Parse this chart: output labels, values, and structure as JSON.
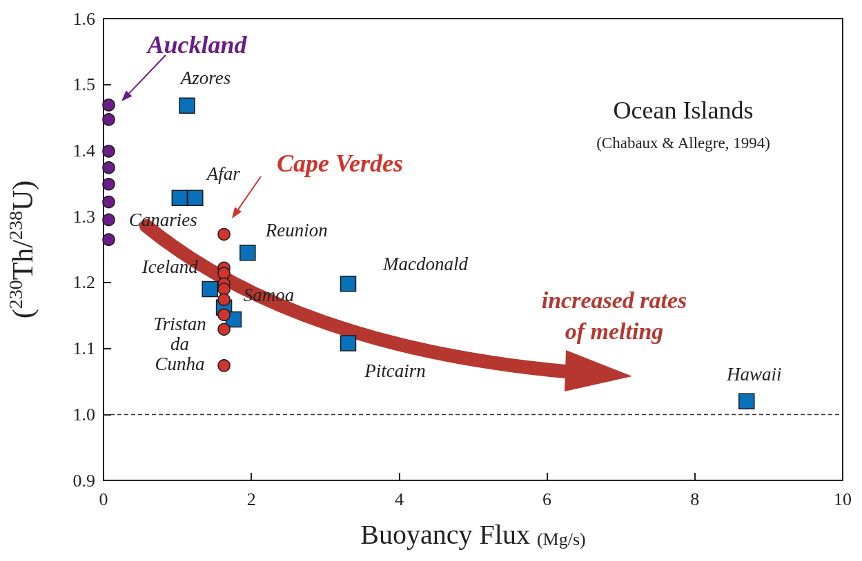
{
  "chart_data": {
    "type": "scatter",
    "xlabel": "Buoyancy Flux (Mg/s)",
    "ylabel": "($^{230}$Th/$^{238}$U)",
    "xlim": [
      0,
      10
    ],
    "xticks": [
      0,
      2,
      4,
      6,
      8,
      10
    ],
    "ylim": [
      0.9,
      1.6
    ],
    "yticks": [
      {
        "value": 0.9,
        "label": "0.9"
      },
      {
        "value": 1,
        "label": "1.0"
      },
      {
        "value": 1.1,
        "label": "1.1"
      },
      {
        "value": 1.2,
        "label": "1.2"
      },
      {
        "value": 1.3,
        "label": "1.3"
      },
      {
        "value": 1.4,
        "label": "1.4"
      },
      {
        "value": 1.5,
        "label": "1.5"
      },
      {
        "value": 1.6,
        "label": "1.6"
      }
    ],
    "grid": false,
    "series": [
      {
        "name": "Auckland",
        "color": "#6b1d87",
        "marker": "circle",
        "x": [
          0.07,
          0.07,
          0.07,
          0.07,
          0.07,
          0.07,
          0.07,
          0.07
        ],
        "values": [
          1.469,
          1.447,
          1.399,
          1.374,
          1.349,
          1.322,
          1.295,
          1.265
        ]
      },
      {
        "name": "Cape Verdes",
        "color": "#d0342c",
        "marker": "circle",
        "x": [
          1.63,
          1.63,
          1.63,
          1.63,
          1.63,
          1.63,
          1.63,
          1.63,
          1.63
        ],
        "values": [
          1.273,
          1.222,
          1.214,
          1.198,
          1.19,
          1.174,
          1.151,
          1.129,
          1.074
        ]
      },
      {
        "color": "#0871b9",
        "marker": "square",
        "x": [
          1.13,
          1.24,
          1.03,
          1.95,
          1.44,
          1.63,
          1.76,
          3.31,
          3.31,
          8.7
        ],
        "values": [
          1.468,
          1.328,
          1.328,
          1.245,
          1.19,
          1.162,
          1.144,
          1.198,
          1.108,
          1.02
        ]
      }
    ],
    "ref_lines": [
      {
        "axis": "y",
        "value": 1,
        "color": "#333333",
        "line_style": "dashed"
      }
    ],
    "annotations": [
      {
        "text": "Azores",
        "x": 1.13,
        "y": 1.468
      },
      {
        "text": "Afar",
        "x": 1.24,
        "y": 1.328
      },
      {
        "text": "Canaries",
        "x": 1.03,
        "y": 1.328
      },
      {
        "text": "Reunion",
        "x": 1.95,
        "y": 1.245
      },
      {
        "text": "Iceland",
        "x": 1.44,
        "y": 1.19
      },
      {
        "text": "Samoa",
        "x": 1.63,
        "y": 1.162
      },
      {
        "text": "Tristan\nda\nCunha",
        "x": 1.76,
        "y": 1.144
      },
      {
        "text": "Macdonald",
        "x": 3.31,
        "y": 1.198
      },
      {
        "text": "Pitcairn",
        "x": 3.31,
        "y": 1.108
      },
      {
        "text": "Hawaii",
        "x": 8.7,
        "y": 1.02
      },
      "Ocean Islands",
      "(Chabaux & Allegre, 1994)",
      "increased rates\nof melting"
    ]
  }
}
